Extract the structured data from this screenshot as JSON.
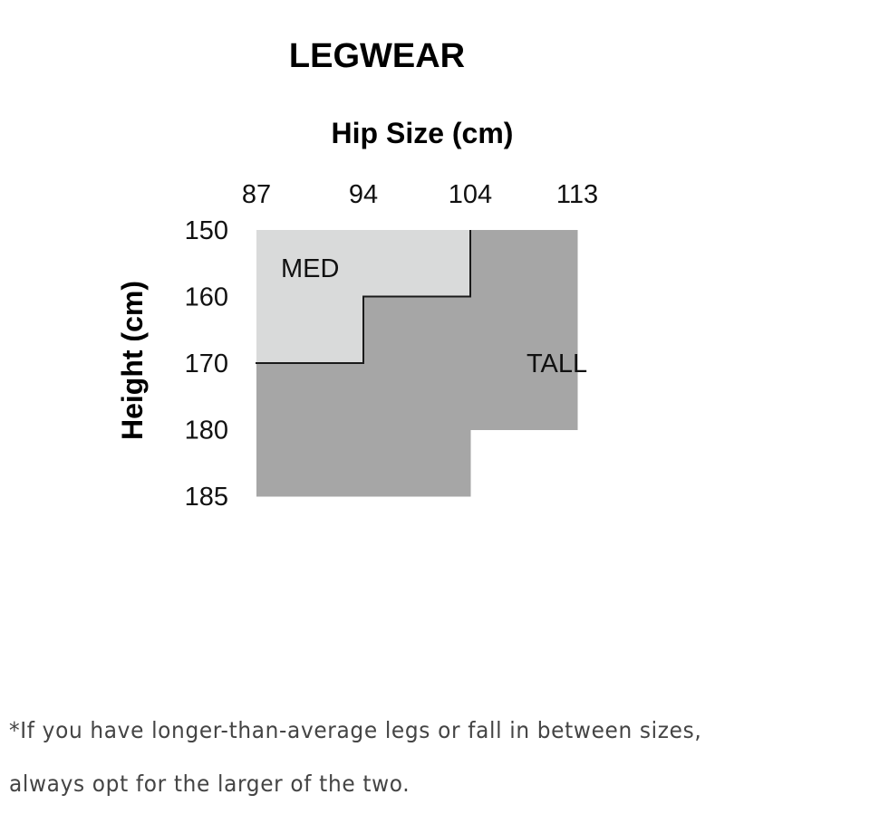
{
  "chart_data": {
    "type": "heatmap",
    "title": "LEGWEAR",
    "xlabel": "Hip Size (cm)",
    "ylabel": "Height (cm)",
    "x_ticks": [
      87,
      94,
      104,
      113
    ],
    "y_ticks": [
      150,
      160,
      170,
      180,
      185
    ],
    "regions": [
      {
        "name": "MED",
        "color": "#d9dada",
        "cells": [
          {
            "hip": [
              87,
              104
            ],
            "height": [
              150,
              160
            ]
          },
          {
            "hip": [
              87,
              94
            ],
            "height": [
              160,
              170
            ]
          }
        ],
        "label_at": {
          "hip": 87,
          "height": 150
        }
      },
      {
        "name": "TALL",
        "color": "#a6a6a6",
        "cells": [
          {
            "hip": [
              104,
              113
            ],
            "height": [
              150,
              160
            ]
          },
          {
            "hip": [
              94,
              113
            ],
            "height": [
              160,
              170
            ]
          },
          {
            "hip": [
              87,
              113
            ],
            "height": [
              170,
              180
            ]
          },
          {
            "hip": [
              87,
              104
            ],
            "height": [
              180,
              185
            ]
          }
        ],
        "label_at": {
          "hip": 104,
          "height": 170
        }
      }
    ],
    "boundary_color": "#1a1a1a"
  },
  "footnote": {
    "line1": "*If you have longer-than-average legs or fall in between sizes,",
    "line2": "always opt for the larger of the two."
  }
}
